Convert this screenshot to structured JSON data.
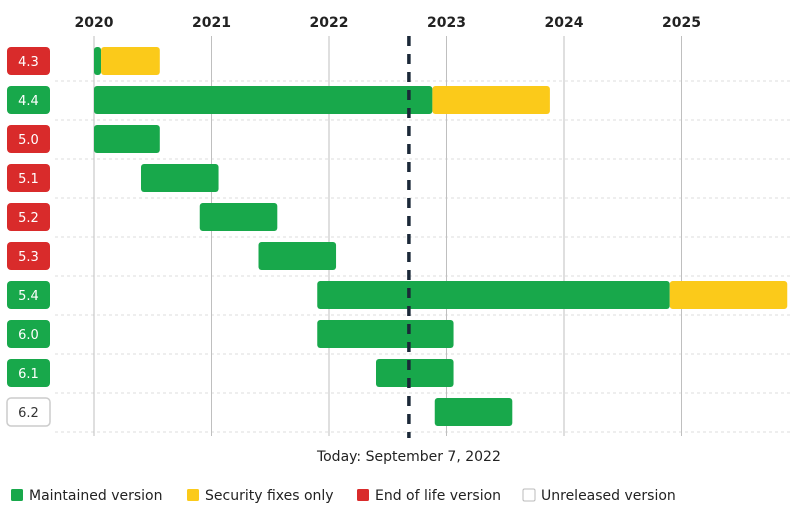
{
  "chart_data": {
    "type": "timeline",
    "years": [
      "2020",
      "2021",
      "2022",
      "2023",
      "2024",
      "2025"
    ],
    "today": {
      "value": 2022.68,
      "label": "Today: September 7, 2022"
    },
    "status_colors": {
      "eol": "#d92b2b",
      "maintained": "#18a84b",
      "security": "#fbca1a",
      "unreleased": "#ffffff"
    },
    "rows": [
      {
        "version": "4.3",
        "status": "eol",
        "segments": [
          {
            "type": "maintained",
            "start": 2020.0,
            "end": 2020.06
          },
          {
            "type": "security",
            "start": 2020.06,
            "end": 2020.56
          }
        ]
      },
      {
        "version": "4.4",
        "status": "maintained",
        "segments": [
          {
            "type": "maintained",
            "start": 2020.0,
            "end": 2022.88
          },
          {
            "type": "security",
            "start": 2022.88,
            "end": 2023.88
          }
        ]
      },
      {
        "version": "5.0",
        "status": "eol",
        "segments": [
          {
            "type": "maintained",
            "start": 2020.0,
            "end": 2020.56
          }
        ]
      },
      {
        "version": "5.1",
        "status": "eol",
        "segments": [
          {
            "type": "maintained",
            "start": 2020.4,
            "end": 2021.06
          }
        ]
      },
      {
        "version": "5.2",
        "status": "eol",
        "segments": [
          {
            "type": "maintained",
            "start": 2020.9,
            "end": 2021.56
          }
        ]
      },
      {
        "version": "5.3",
        "status": "eol",
        "segments": [
          {
            "type": "maintained",
            "start": 2021.4,
            "end": 2022.06
          }
        ]
      },
      {
        "version": "5.4",
        "status": "maintained",
        "segments": [
          {
            "type": "maintained",
            "start": 2021.9,
            "end": 2024.9
          },
          {
            "type": "security",
            "start": 2024.9,
            "end": 2025.9
          }
        ]
      },
      {
        "version": "6.0",
        "status": "maintained",
        "segments": [
          {
            "type": "maintained",
            "start": 2021.9,
            "end": 2023.06
          }
        ]
      },
      {
        "version": "6.1",
        "status": "maintained",
        "segments": [
          {
            "type": "maintained",
            "start": 2022.4,
            "end": 2023.06
          }
        ]
      },
      {
        "version": "6.2",
        "status": "unreleased",
        "segments": [
          {
            "type": "maintained",
            "start": 2022.9,
            "end": 2023.56
          }
        ]
      }
    ],
    "legend": [
      {
        "key": "maintained",
        "label": "Maintained version"
      },
      {
        "key": "security",
        "label": "Security fixes only"
      },
      {
        "key": "eol",
        "label": "End of life version"
      },
      {
        "key": "unreleased",
        "label": "Unreleased version"
      }
    ]
  }
}
